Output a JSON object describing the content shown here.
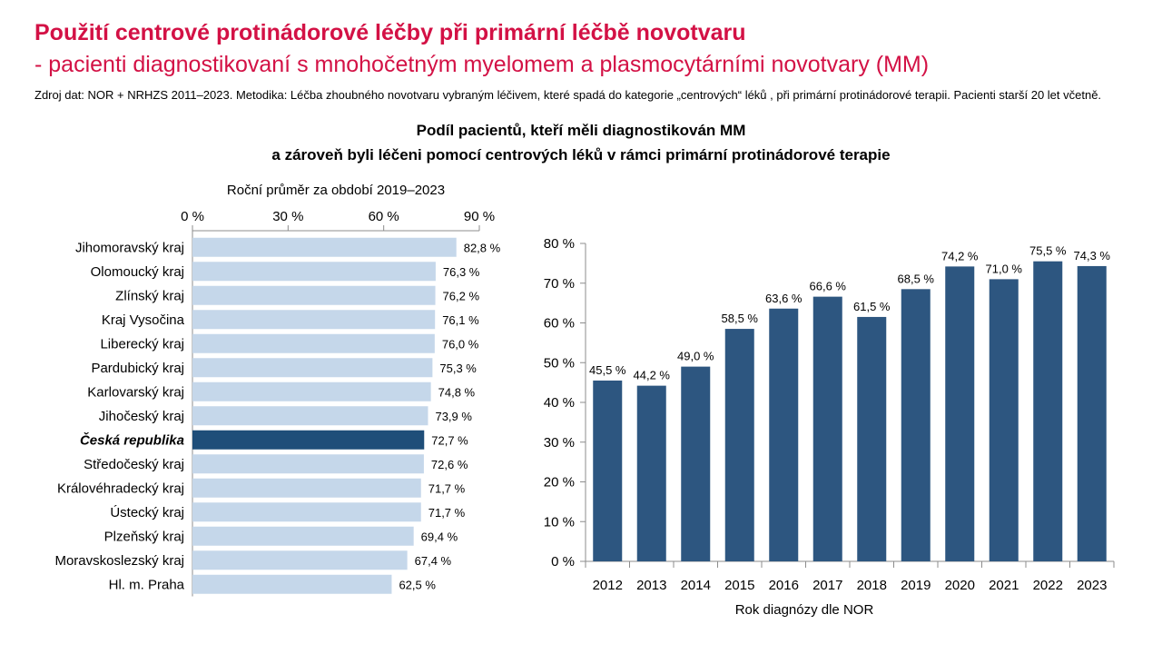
{
  "header": {
    "title": "Použití centrové protinádorové léčby při primární léčbě novotvaru",
    "subtitle": "- pacienti diagnostikovaní s mnohočetným myelomem a plasmocytárními novotvary (MM)",
    "source": "Zdroj dat: NOR + NRHZS 2011–2023. Metodika: Léčba zhoubného novotvaru vybraným léčivem, které spadá do kategorie „centrových“ léků , při primární protinádorové terapii. Pacienti starší 20 let včetně."
  },
  "chart_title": {
    "line1": "Podíl pacientů, kteří měli diagnostikován MM",
    "line2": "a zároveň byli léčeni pomocí centrových léků v rámci primární protinádorové terapie"
  },
  "colors": {
    "accent": "#d31145",
    "bar_light": "#c5d7ea",
    "bar_dark": "#2d5680",
    "highlight": "#1f4e79"
  },
  "chart_data": [
    {
      "type": "bar",
      "orientation": "horizontal",
      "title": "Roční průměr za období 2019–2023",
      "categories": [
        "Jihomoravský kraj",
        "Olomoucký kraj",
        "Zlínský kraj",
        "Kraj Vysočina",
        "Liberecký kraj",
        "Pardubický kraj",
        "Karlovarský kraj",
        "Jihočeský kraj",
        "Česká republika",
        "Středočeský kraj",
        "Královéhradecký kraj",
        "Ústecký kraj",
        "Plzeňský kraj",
        "Moravskoslezský kraj",
        "Hl. m. Praha"
      ],
      "values": [
        82.8,
        76.3,
        76.2,
        76.1,
        76.0,
        75.3,
        74.8,
        73.9,
        72.7,
        72.6,
        71.7,
        71.7,
        69.4,
        67.4,
        62.5
      ],
      "value_labels": [
        "82,8 %",
        "76,3 %",
        "76,2 %",
        "76,1 %",
        "76,0 %",
        "75,3 %",
        "74,8 %",
        "73,9 %",
        "72,7 %",
        "72,6 %",
        "71,7 %",
        "71,7 %",
        "69,4 %",
        "67,4 %",
        "62,5 %"
      ],
      "highlight": "Česká republika",
      "xlim": [
        0,
        90
      ],
      "ticks": [
        0,
        30,
        60,
        90
      ],
      "tick_labels": [
        "0 %",
        "30 %",
        "60 %",
        "90 %"
      ],
      "axis_position": "top",
      "grid": false
    },
    {
      "type": "bar",
      "orientation": "vertical",
      "categories": [
        "2012",
        "2013",
        "2014",
        "2015",
        "2016",
        "2017",
        "2018",
        "2019",
        "2020",
        "2021",
        "2022",
        "2023"
      ],
      "values": [
        45.5,
        44.2,
        49.0,
        58.5,
        63.6,
        66.6,
        61.5,
        68.5,
        74.2,
        71.0,
        75.5,
        74.3
      ],
      "value_labels": [
        "45,5 %",
        "44,2 %",
        "49,0 %",
        "58,5 %",
        "63,6 %",
        "66,6 %",
        "61,5 %",
        "68,5 %",
        "74,2 %",
        "71,0 %",
        "75,5 %",
        "74,3 %"
      ],
      "xlabel": "Rok diagnózy dle NOR",
      "ylim": [
        0,
        80
      ],
      "ticks": [
        0,
        10,
        20,
        30,
        40,
        50,
        60,
        70,
        80
      ],
      "tick_labels": [
        "0 %",
        "10 %",
        "20 %",
        "30 %",
        "40 %",
        "50 %",
        "60 %",
        "70 %",
        "80 %"
      ],
      "grid": false
    }
  ]
}
